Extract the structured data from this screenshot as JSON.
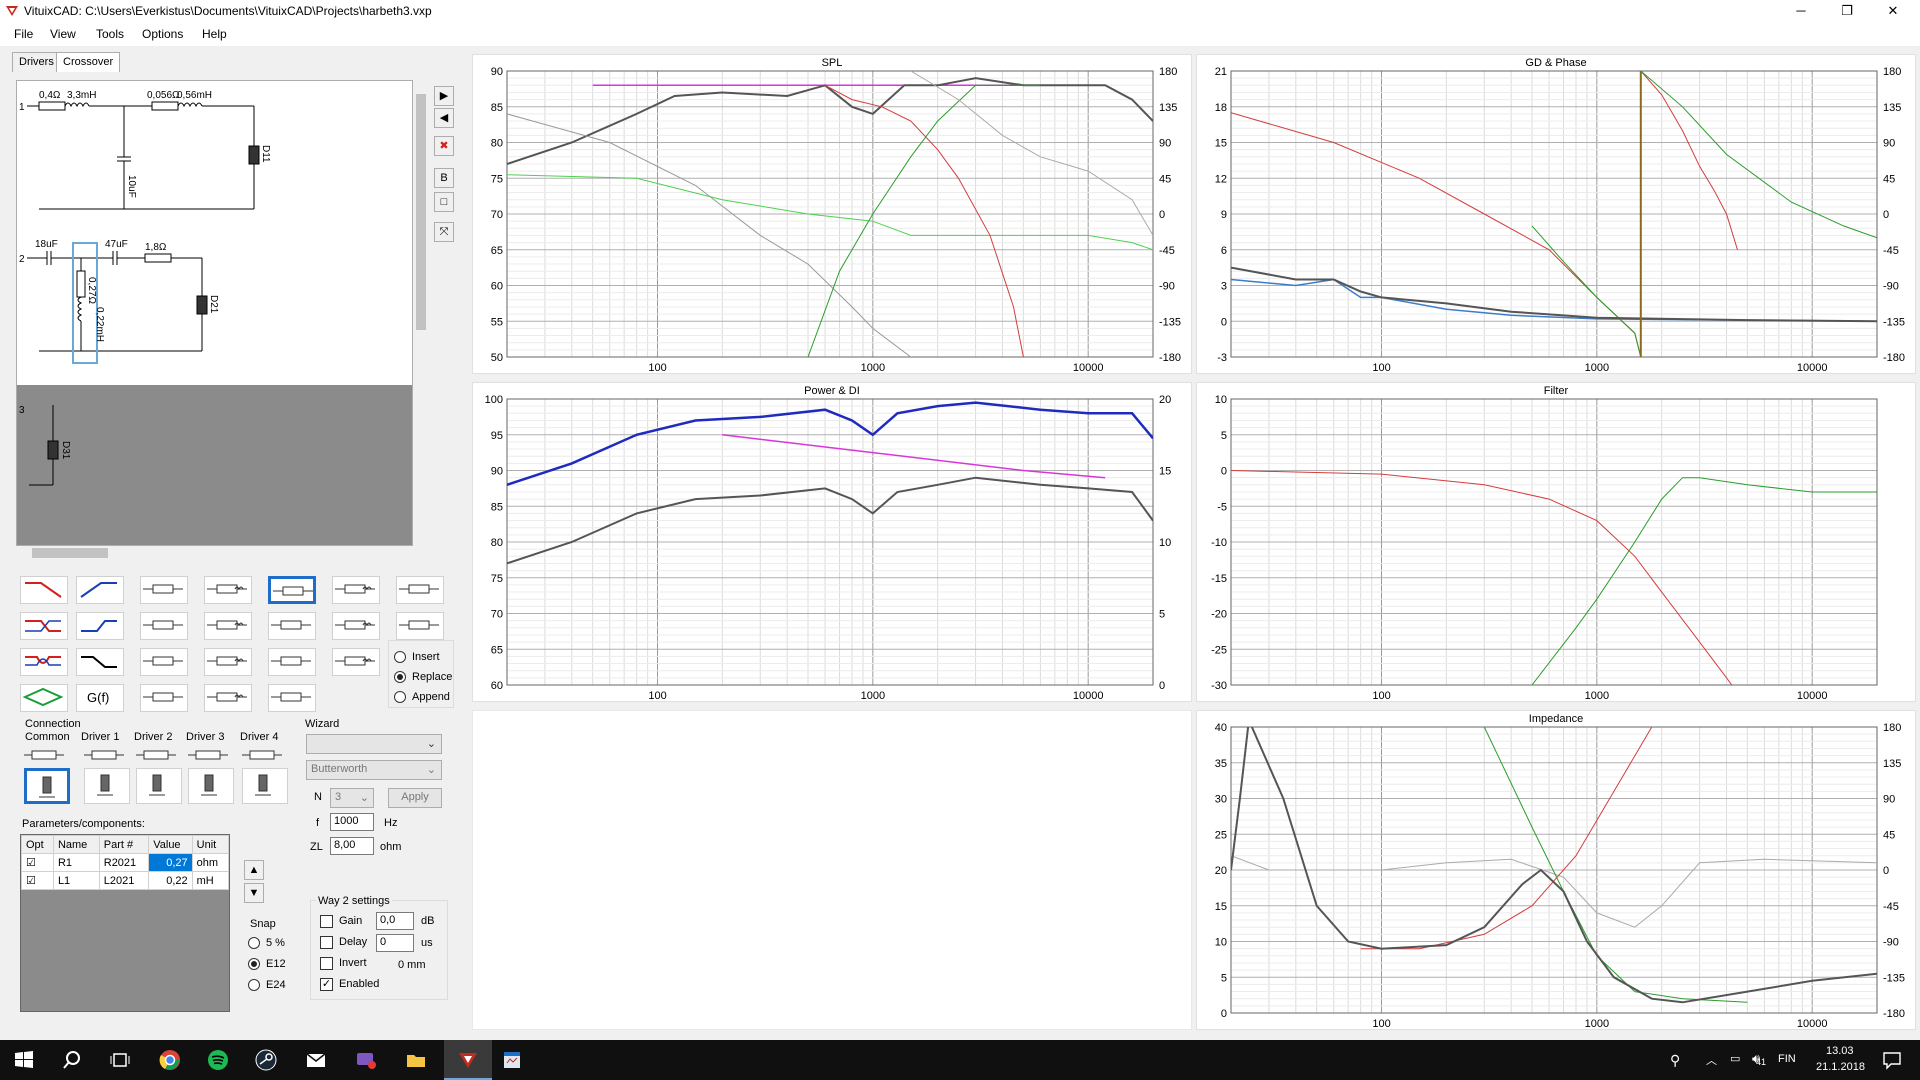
{
  "window": {
    "title": "VituixCAD: C:\\Users\\Everkistus\\Documents\\VituixCAD\\Projects\\harbeth3.vxp",
    "minimize": "─",
    "maximize": "❐",
    "close": "✕"
  },
  "menu": [
    "File",
    "View",
    "Tools",
    "Options",
    "Help"
  ],
  "tabs": [
    "Drivers",
    "Crossover"
  ],
  "schematic": {
    "way1": {
      "num": "1",
      "r": "0,4Ω",
      "l1": "3,3mH",
      "r2": "0,056Ω",
      "l2": "0,56mH",
      "c": "10uF",
      "driver": "D11"
    },
    "way2": {
      "num": "2",
      "c1": "18uF",
      "c2": "47uF",
      "r": "1,8Ω",
      "rp": "0,27Ω",
      "lp": "0,22mH",
      "driver": "D21"
    },
    "way3": {
      "num": "3",
      "driver": "D31"
    }
  },
  "connection": {
    "label": "Connection",
    "cols": [
      "Common",
      "Driver 1",
      "Driver 2",
      "Driver 3",
      "Driver 4"
    ]
  },
  "insert_mode": {
    "options": [
      "Insert",
      "Replace",
      "Append"
    ],
    "selected": "Replace"
  },
  "gf_label": "G(f)",
  "wizard": {
    "label": "Wizard",
    "type": "",
    "filter": "Butterworth",
    "n_label": "N",
    "n_value": "3",
    "apply": "Apply",
    "f_label": "f",
    "f_value": "1000",
    "f_unit": "Hz",
    "zl_label": "ZL",
    "zl_value": "8,00",
    "zl_unit": "ohm"
  },
  "params": {
    "label": "Parameters/components:",
    "headers": [
      "Opt",
      "Name",
      "Part #",
      "Value",
      "Unit"
    ],
    "rows": [
      {
        "opt": true,
        "name": "R1",
        "part": "R2021",
        "value": "0,27",
        "unit": "ohm"
      },
      {
        "opt": true,
        "name": "L1",
        "part": "L2021",
        "value": "0,22",
        "unit": "mH"
      }
    ]
  },
  "snap": {
    "label": "Snap",
    "options": [
      "5 %",
      "E12",
      "E24"
    ],
    "selected": "E12"
  },
  "way_settings": {
    "label": "Way 2 settings",
    "gain_label": "Gain",
    "gain_value": "0,0",
    "gain_unit": "dB",
    "delay_label": "Delay",
    "delay_value": "0",
    "delay_unit": "us",
    "invert_label": "Invert",
    "invert_unit": "0 mm",
    "enabled_label": "Enabled",
    "enabled": true
  },
  "plots": [
    {
      "id": "spl",
      "title": "SPL",
      "yleft": [
        "90",
        "85",
        "80",
        "75",
        "70",
        "65",
        "60",
        "55",
        "50"
      ],
      "yright": [
        "180",
        "135",
        "90",
        "45",
        "0",
        "-45",
        "-90",
        "-135",
        "-180"
      ],
      "x": [
        "100",
        "1000",
        "10000"
      ]
    },
    {
      "id": "gd",
      "title": "GD & Phase",
      "yleft": [
        "21",
        "18",
        "15",
        "12",
        "9",
        "6",
        "3",
        "0",
        "-3"
      ],
      "yright": [
        "180",
        "135",
        "90",
        "45",
        "0",
        "-45",
        "-90",
        "-135",
        "-180"
      ],
      "x": [
        "100",
        "1000",
        "10000"
      ]
    },
    {
      "id": "power",
      "title": "Power & DI",
      "yleft": [
        "100",
        "95",
        "90",
        "85",
        "80",
        "75",
        "70",
        "65",
        "60"
      ],
      "yright": [
        "20",
        "",
        "15",
        "",
        "10",
        "",
        "5",
        "",
        "0"
      ],
      "x": [
        "100",
        "1000",
        "10000"
      ]
    },
    {
      "id": "filter",
      "title": "Filter",
      "yleft": [
        "10",
        "5",
        "0",
        "-5",
        "-10",
        "-15",
        "-20",
        "-25",
        "-30"
      ],
      "yright": [],
      "x": [
        "100",
        "1000",
        "10000"
      ]
    },
    {
      "id": "imp",
      "title": "Impedance",
      "yleft": [
        "40",
        "35",
        "30",
        "25",
        "20",
        "15",
        "10",
        "5",
        "0"
      ],
      "yright": [
        "180",
        "135",
        "90",
        "45",
        "0",
        "-45",
        "-90",
        "-135",
        "-180"
      ],
      "x": [
        "100",
        "1000",
        "10000"
      ]
    }
  ],
  "taskbar": {
    "time": "13.03",
    "date": "21.1.2018",
    "lang": "FIN",
    "badge": "41"
  }
}
